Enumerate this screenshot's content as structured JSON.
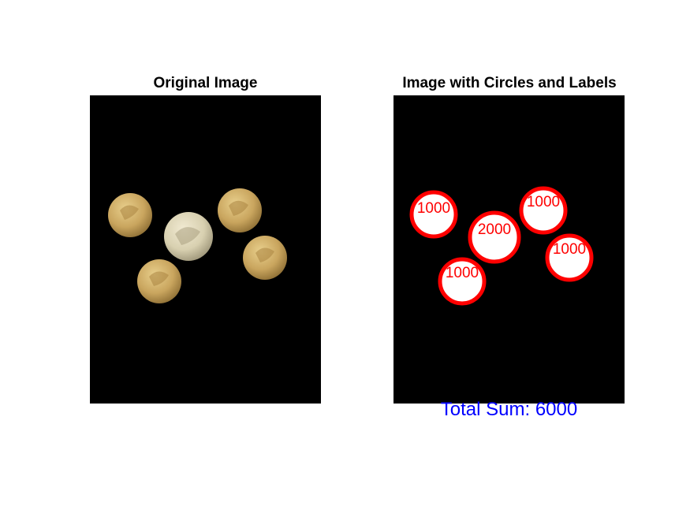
{
  "figure": {
    "left_title": "Original Image",
    "right_title": "Image with Circles and Labels",
    "total_label": "Total Sum: 6000"
  },
  "coins": [
    {
      "label": "1000"
    },
    {
      "label": "2000"
    },
    {
      "label": "1000"
    },
    {
      "label": "1000"
    },
    {
      "label": "1000"
    }
  ],
  "colors": {
    "background": "#000000",
    "circle_stroke": "#ff0000",
    "circle_fill": "#ffffff",
    "label": "#ff0000",
    "total": "#0000ff",
    "coin_gold": "#c9a55e",
    "coin_silver": "#d8d0b0"
  }
}
